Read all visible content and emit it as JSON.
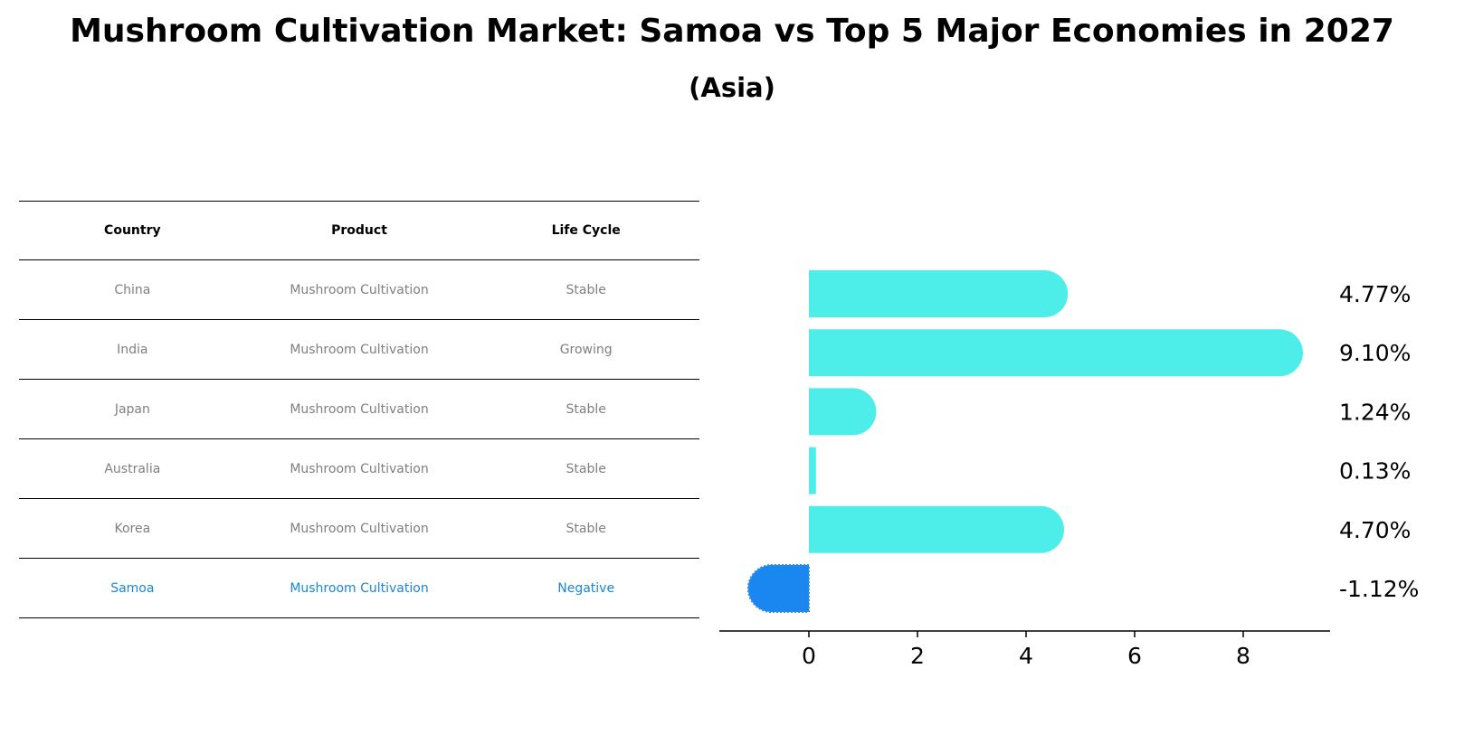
{
  "title": "Mushroom Cultivation Market: Samoa vs Top 5 Major Economies in 2027",
  "subtitle": "(Asia)",
  "table": {
    "headers": [
      "Country",
      "Product",
      "Life Cycle"
    ],
    "rows": [
      [
        "China",
        "Mushroom Cultivation",
        "Stable"
      ],
      [
        "India",
        "Mushroom Cultivation",
        "Growing"
      ],
      [
        "Japan",
        "Mushroom Cultivation",
        "Stable"
      ],
      [
        "Australia",
        "Mushroom Cultivation",
        "Stable"
      ],
      [
        "Korea",
        "Mushroom Cultivation",
        "Stable"
      ],
      [
        "Samoa",
        "Mushroom Cultivation",
        "Negative"
      ]
    ],
    "highlight_row": 5,
    "text_color": "#7f7f7f",
    "highlight_color": "#1a86d8"
  },
  "chart_data": {
    "type": "bar",
    "orientation": "horizontal",
    "categories": [
      "China",
      "India",
      "Japan",
      "Australia",
      "Korea",
      "Samoa"
    ],
    "values": [
      4.77,
      9.1,
      1.24,
      0.13,
      4.7,
      -1.12
    ],
    "value_labels": [
      "4.77%",
      "9.10%",
      "1.24%",
      "0.13%",
      "4.70%",
      "-1.12%"
    ],
    "xticks": [
      0,
      2,
      4,
      6,
      8
    ],
    "xlim": [
      -1.65,
      9.6
    ],
    "bar_color": "#4deeea",
    "highlight_color": "#1a86f0",
    "highlight_index": 5,
    "grid": false
  }
}
